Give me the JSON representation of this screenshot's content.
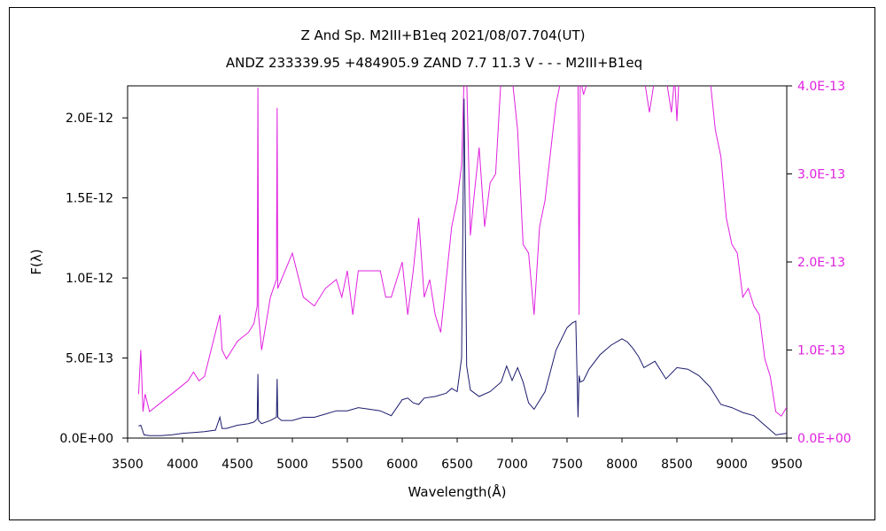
{
  "chart_data": {
    "type": "line",
    "title": "Z And   Sp. M2III+B1eq   2021/08/07.704(UT)",
    "subtitle": "ANDZ 233339.95 +484905.9 ZAND 7.7 11.3 V - - - M2III+B1eq",
    "xlabel": "Wavelength(Å)",
    "ylabel": "F(λ)",
    "xlim": [
      3500,
      9500
    ],
    "xticks": [
      "3500",
      "4000",
      "4500",
      "5000",
      "5500",
      "6000",
      "6500",
      "7000",
      "7500",
      "8000",
      "8500",
      "9000",
      "9500"
    ],
    "y_left": {
      "lim": [
        0,
        2.2e-12
      ],
      "ticks": [
        0,
        5e-13,
        1e-12,
        1.5e-12,
        2e-12
      ],
      "tick_labels": [
        "0.0E+00",
        "5.0E-13",
        "1.0E-12",
        "1.5E-12",
        "2.0E-12"
      ]
    },
    "y_right": {
      "lim": [
        0,
        4e-13
      ],
      "ticks": [
        0,
        1e-13,
        2e-13,
        3e-13,
        4e-13
      ],
      "tick_labels": [
        "0.0E+00",
        "1.0E-13",
        "2.0E-13",
        "3.0E-13",
        "4.0E-13"
      ]
    },
    "grid": false,
    "colors": {
      "left_series": "#1c1c6e",
      "right_series": "#e020e0",
      "right_axis_text": "#e020e0"
    },
    "series": [
      {
        "axis": "left",
        "x": [
          3600,
          3620,
          3650,
          3700,
          3800,
          3900,
          4000,
          4100,
          4200,
          4300,
          4340,
          4360,
          4400,
          4500,
          4600,
          4650,
          4680,
          4686,
          4692,
          4720,
          4800,
          4855,
          4861,
          4867,
          4900,
          5000,
          5100,
          5200,
          5300,
          5400,
          5500,
          5600,
          5700,
          5800,
          5900,
          6000,
          6050,
          6100,
          6150,
          6200,
          6300,
          6400,
          6450,
          6500,
          6540,
          6563,
          6586,
          6620,
          6700,
          6800,
          6900,
          6950,
          7000,
          7050,
          7100,
          7150,
          7200,
          7300,
          7400,
          7500,
          7550,
          7580,
          7600,
          7610,
          7620,
          7650,
          7700,
          7800,
          7900,
          8000,
          8050,
          8100,
          8150,
          8200,
          8300,
          8400,
          8500,
          8600,
          8700,
          8800,
          8900,
          9000,
          9100,
          9200,
          9300,
          9400,
          9500
        ],
        "y": [
          7.5e-14,
          8e-14,
          2e-14,
          1.5e-14,
          1.5e-14,
          2e-14,
          3e-14,
          3.5e-14,
          4e-14,
          5e-14,
          1.3e-13,
          6e-14,
          6e-14,
          8e-14,
          9e-14,
          1e-13,
          1.2e-13,
          4e-13,
          1.1e-13,
          9e-14,
          1.1e-13,
          1.3e-13,
          3.7e-13,
          1.3e-13,
          1.1e-13,
          1.1e-13,
          1.3e-13,
          1.3e-13,
          1.5e-13,
          1.7e-13,
          1.7e-13,
          1.9e-13,
          1.8e-13,
          1.7e-13,
          1.4e-13,
          2.4e-13,
          2.5e-13,
          2.2e-13,
          2.1e-13,
          2.5e-13,
          2.6e-13,
          2.8e-13,
          3.1e-13,
          2.9e-13,
          5e-13,
          2.12e-12,
          4.5e-13,
          3e-13,
          2.6e-13,
          2.9e-13,
          3.5e-13,
          4.5e-13,
          3.6e-13,
          4.4e-13,
          3.5e-13,
          2.2e-13,
          1.8e-13,
          2.9e-13,
          5.5e-13,
          6.9e-13,
          7.2e-13,
          7.3e-13,
          1.3e-13,
          3.9e-13,
          3.5e-13,
          3.6e-13,
          4.3e-13,
          5.2e-13,
          5.8e-13,
          6.2e-13,
          6e-13,
          5.6e-13,
          5.1e-13,
          4.4e-13,
          4.8e-13,
          3.7e-13,
          4.4e-13,
          4.3e-13,
          3.9e-13,
          3.2e-13,
          2.1e-13,
          1.9e-13,
          1.6e-13,
          1.4e-13,
          8e-14,
          2e-14,
          3e-14
        ]
      },
      {
        "axis": "right",
        "x": [
          3600,
          3620,
          3640,
          3660,
          3700,
          3800,
          3900,
          4000,
          4050,
          4100,
          4150,
          4200,
          4300,
          4340,
          4360,
          4400,
          4500,
          4600,
          4650,
          4680,
          4686,
          4692,
          4720,
          4800,
          4855,
          4861,
          4867,
          4900,
          5000,
          5100,
          5200,
          5300,
          5400,
          5450,
          5500,
          5550,
          5600,
          5700,
          5800,
          5850,
          5900,
          5950,
          6000,
          6050,
          6100,
          6150,
          6200,
          6250,
          6300,
          6350,
          6400,
          6450,
          6500,
          6540,
          6563,
          6586,
          6620,
          6650,
          6700,
          6750,
          6800,
          6850,
          6900,
          6950,
          6980,
          7000,
          7050,
          7100,
          7150,
          7200,
          7250,
          7300,
          7400,
          7450,
          7500,
          7550,
          7580,
          7600,
          7610,
          7620,
          7650,
          7700,
          7800,
          7900,
          8000,
          8100,
          8200,
          8250,
          8300,
          8400,
          8450,
          8480,
          8500,
          8520,
          8550,
          8600,
          8700,
          8800,
          8850,
          8900,
          8950,
          9000,
          9050,
          9100,
          9150,
          9200,
          9250,
          9300,
          9350,
          9400,
          9450,
          9500
        ],
        "y": [
          5e-14,
          1e-13,
          3e-14,
          5e-14,
          3e-14,
          4e-14,
          5e-14,
          6e-14,
          6.5e-14,
          7.5e-14,
          6.5e-14,
          7e-14,
          1.2e-13,
          1.4e-13,
          1e-13,
          9e-14,
          1.1e-13,
          1.2e-13,
          1.3e-13,
          1.5e-13,
          3.98e-13,
          1.4e-13,
          1e-13,
          1.6e-13,
          1.8e-13,
          3.75e-13,
          1.7e-13,
          1.8e-13,
          2.1e-13,
          1.6e-13,
          1.5e-13,
          1.7e-13,
          1.8e-13,
          1.6e-13,
          1.9e-13,
          1.4e-13,
          1.9e-13,
          1.9e-13,
          1.9e-13,
          1.6e-13,
          1.6e-13,
          1.8e-13,
          2e-13,
          1.4e-13,
          1.9e-13,
          2.5e-13,
          1.6e-13,
          1.8e-13,
          1.4e-13,
          1.2e-13,
          1.8e-13,
          2.4e-13,
          2.7e-13,
          3.1e-13,
          4.1e-13,
          4.1e-13,
          2.3e-13,
          2.7e-13,
          3.3e-13,
          2.4e-13,
          2.9e-13,
          3e-13,
          4.1e-13,
          4.1e-13,
          4.1e-13,
          4.1e-13,
          3.5e-13,
          2.2e-13,
          2.1e-13,
          1.4e-13,
          2.4e-13,
          2.7e-13,
          3.8e-13,
          4.1e-13,
          4.1e-13,
          4.1e-13,
          4.1e-13,
          4.1e-13,
          1.4e-13,
          4.1e-13,
          3.9e-13,
          4.1e-13,
          4.1e-13,
          4.1e-13,
          4.1e-13,
          4.1e-13,
          4.1e-13,
          3.7e-13,
          4.1e-13,
          4.1e-13,
          3.7e-13,
          4.1e-13,
          3.6e-13,
          4.1e-13,
          4.1e-13,
          4.1e-13,
          4.1e-13,
          4.1e-13,
          3.5e-13,
          3.2e-13,
          2.5e-13,
          2.2e-13,
          2.1e-13,
          1.6e-13,
          1.7e-13,
          1.5e-13,
          1.4e-13,
          9e-14,
          7e-14,
          3e-14,
          2.5e-14,
          3.5e-14
        ]
      }
    ]
  }
}
